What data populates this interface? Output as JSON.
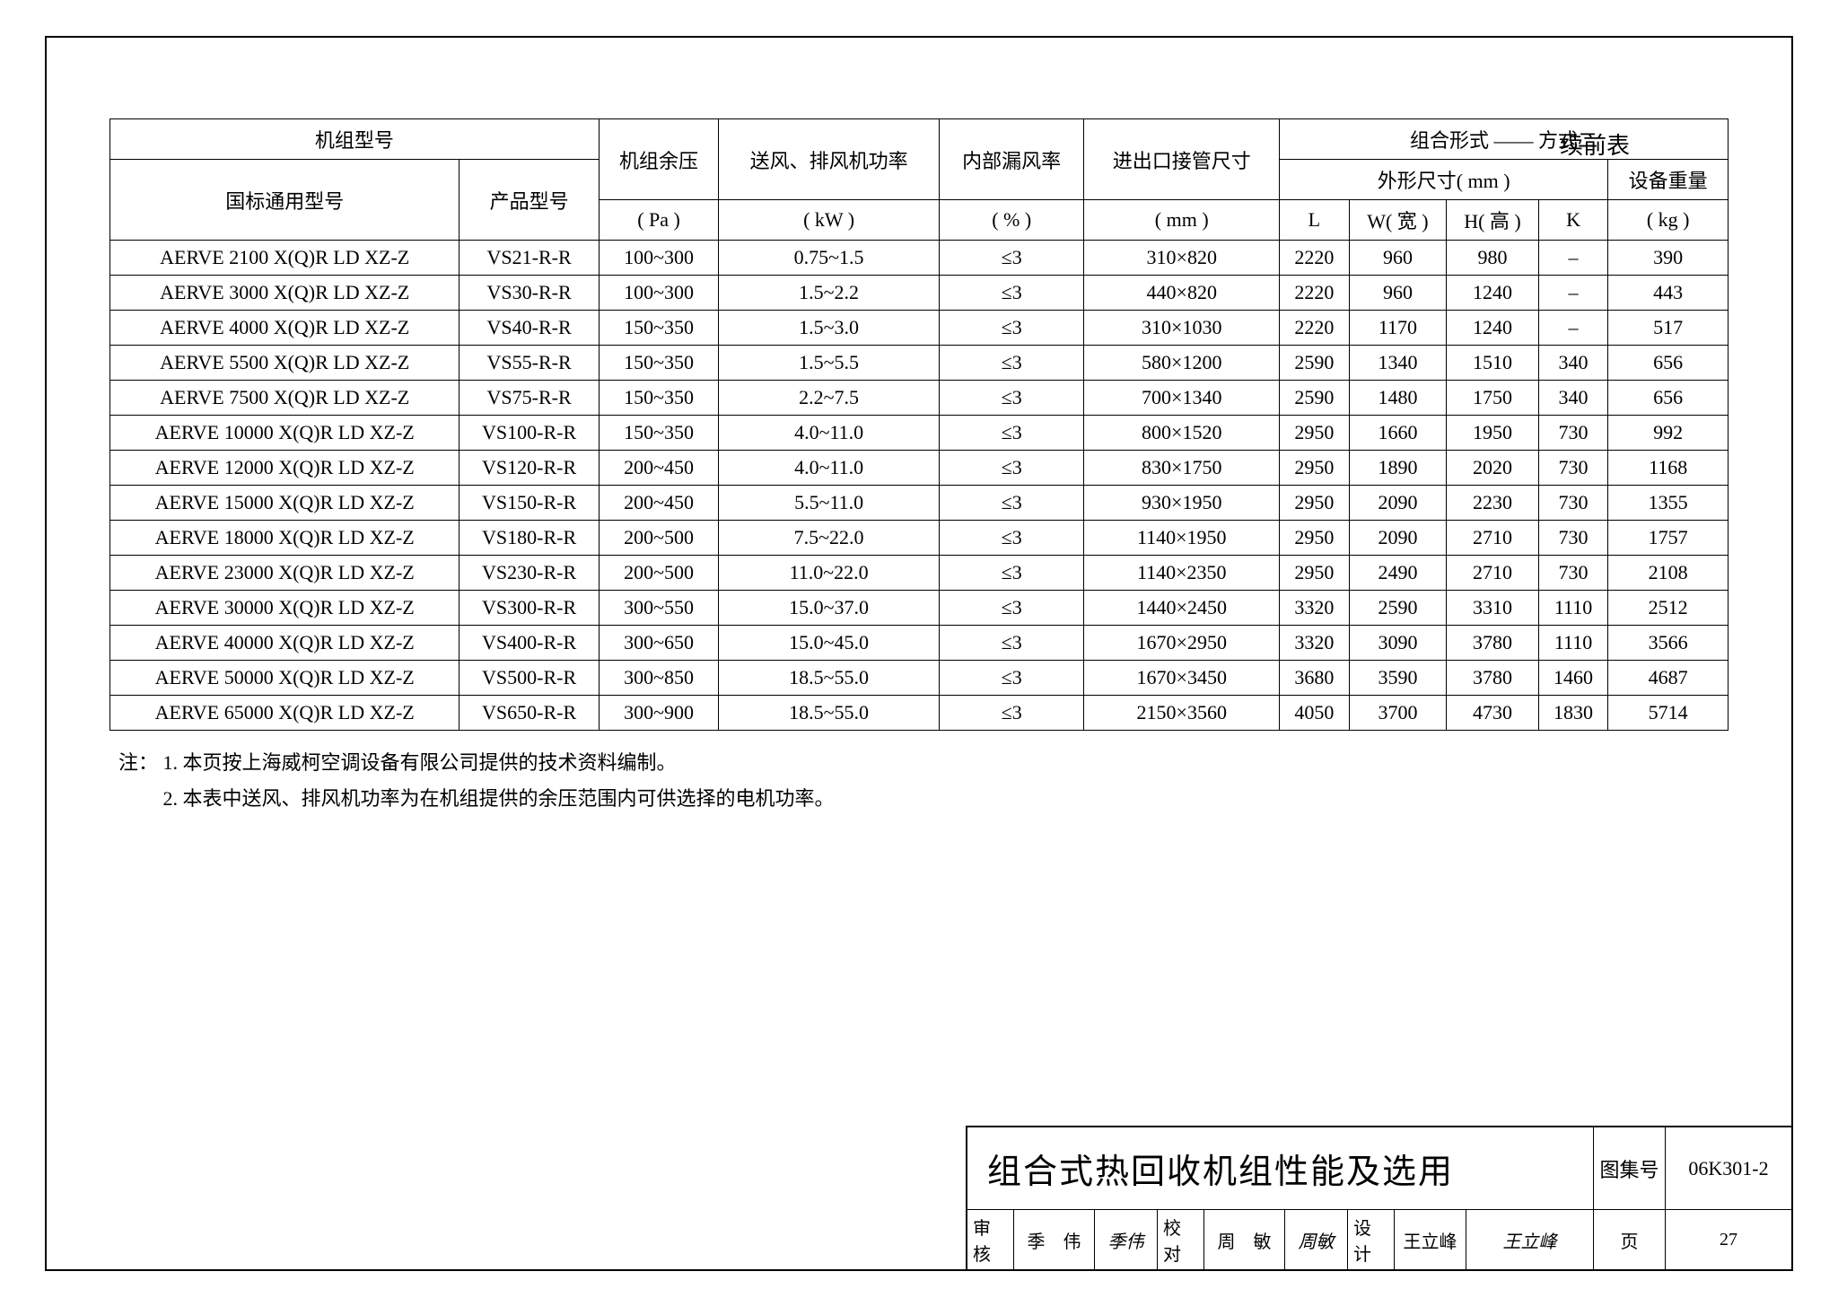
{
  "cont_label": "续前表",
  "table": {
    "header": {
      "model": "机组型号",
      "model_gb": "国标通用型号",
      "model_prod": "产品型号",
      "residual": "机组余压",
      "residual_unit": "( Pa )",
      "power": "送风、排风机功率",
      "power_unit": "( kW )",
      "leak": "内部漏风率",
      "leak_unit": "( % )",
      "pipe": "进出口接管尺寸",
      "pipe_unit": "( mm )",
      "combo": "组合形式 —— 方式二",
      "dims": "外形尺寸( mm )",
      "dim_L": "L",
      "dim_W": "W( 宽 )",
      "dim_H": "H( 高 )",
      "dim_K": "K",
      "weight": "设备重量",
      "weight_unit": "( kg )"
    },
    "rows": [
      {
        "gb": "AERVE 2100 X(Q)R LD XZ-Z",
        "prod": "VS21-R-R",
        "res": "100~300",
        "pow": "0.75~1.5",
        "leak": "≤3",
        "pipe": "310×820",
        "L": "2220",
        "W": "960",
        "H": "980",
        "K": "–",
        "wt": "390"
      },
      {
        "gb": "AERVE 3000 X(Q)R LD XZ-Z",
        "prod": "VS30-R-R",
        "res": "100~300",
        "pow": "1.5~2.2",
        "leak": "≤3",
        "pipe": "440×820",
        "L": "2220",
        "W": "960",
        "H": "1240",
        "K": "–",
        "wt": "443"
      },
      {
        "gb": "AERVE 4000 X(Q)R LD XZ-Z",
        "prod": "VS40-R-R",
        "res": "150~350",
        "pow": "1.5~3.0",
        "leak": "≤3",
        "pipe": "310×1030",
        "L": "2220",
        "W": "1170",
        "H": "1240",
        "K": "–",
        "wt": "517"
      },
      {
        "gb": "AERVE 5500 X(Q)R LD XZ-Z",
        "prod": "VS55-R-R",
        "res": "150~350",
        "pow": "1.5~5.5",
        "leak": "≤3",
        "pipe": "580×1200",
        "L": "2590",
        "W": "1340",
        "H": "1510",
        "K": "340",
        "wt": "656"
      },
      {
        "gb": "AERVE 7500 X(Q)R LD XZ-Z",
        "prod": "VS75-R-R",
        "res": "150~350",
        "pow": "2.2~7.5",
        "leak": "≤3",
        "pipe": "700×1340",
        "L": "2590",
        "W": "1480",
        "H": "1750",
        "K": "340",
        "wt": "656"
      },
      {
        "gb": "AERVE 10000 X(Q)R LD XZ-Z",
        "prod": "VS100-R-R",
        "res": "150~350",
        "pow": "4.0~11.0",
        "leak": "≤3",
        "pipe": "800×1520",
        "L": "2950",
        "W": "1660",
        "H": "1950",
        "K": "730",
        "wt": "992"
      },
      {
        "gb": "AERVE 12000 X(Q)R LD XZ-Z",
        "prod": "VS120-R-R",
        "res": "200~450",
        "pow": "4.0~11.0",
        "leak": "≤3",
        "pipe": "830×1750",
        "L": "2950",
        "W": "1890",
        "H": "2020",
        "K": "730",
        "wt": "1168"
      },
      {
        "gb": "AERVE 15000 X(Q)R LD XZ-Z",
        "prod": "VS150-R-R",
        "res": "200~450",
        "pow": "5.5~11.0",
        "leak": "≤3",
        "pipe": "930×1950",
        "L": "2950",
        "W": "2090",
        "H": "2230",
        "K": "730",
        "wt": "1355"
      },
      {
        "gb": "AERVE 18000 X(Q)R LD XZ-Z",
        "prod": "VS180-R-R",
        "res": "200~500",
        "pow": "7.5~22.0",
        "leak": "≤3",
        "pipe": "1140×1950",
        "L": "2950",
        "W": "2090",
        "H": "2710",
        "K": "730",
        "wt": "1757"
      },
      {
        "gb": "AERVE 23000 X(Q)R LD XZ-Z",
        "prod": "VS230-R-R",
        "res": "200~500",
        "pow": "11.0~22.0",
        "leak": "≤3",
        "pipe": "1140×2350",
        "L": "2950",
        "W": "2490",
        "H": "2710",
        "K": "730",
        "wt": "2108"
      },
      {
        "gb": "AERVE 30000 X(Q)R LD XZ-Z",
        "prod": "VS300-R-R",
        "res": "300~550",
        "pow": "15.0~37.0",
        "leak": "≤3",
        "pipe": "1440×2450",
        "L": "3320",
        "W": "2590",
        "H": "3310",
        "K": "1110",
        "wt": "2512"
      },
      {
        "gb": "AERVE 40000 X(Q)R LD XZ-Z",
        "prod": "VS400-R-R",
        "res": "300~650",
        "pow": "15.0~45.0",
        "leak": "≤3",
        "pipe": "1670×2950",
        "L": "3320",
        "W": "3090",
        "H": "3780",
        "K": "1110",
        "wt": "3566"
      },
      {
        "gb": "AERVE 50000 X(Q)R LD XZ-Z",
        "prod": "VS500-R-R",
        "res": "300~850",
        "pow": "18.5~55.0",
        "leak": "≤3",
        "pipe": "1670×3450",
        "L": "3680",
        "W": "3590",
        "H": "3780",
        "K": "1460",
        "wt": "4687"
      },
      {
        "gb": "AERVE 65000 X(Q)R LD XZ-Z",
        "prod": "VS650-R-R",
        "res": "300~900",
        "pow": "18.5~55.0",
        "leak": "≤3",
        "pipe": "2150×3560",
        "L": "4050",
        "W": "3700",
        "H": "4730",
        "K": "1830",
        "wt": "5714"
      }
    ]
  },
  "notes": {
    "lead": "注：",
    "items": [
      "1. 本页按上海威柯空调设备有限公司提供的技术资料编制。",
      "2. 本表中送风、排风机功率为在机组提供的余压范围内可供选择的电机功率。"
    ]
  },
  "titleblock": {
    "title": "组合式热回收机组性能及选用",
    "set_lbl": "图集号",
    "set_val": "06K301-2",
    "page_lbl": "页",
    "page_val": "27",
    "review_lbl": "审核",
    "review_name": "季　伟",
    "review_sig": "季伟",
    "check_lbl": "校对",
    "check_name": "周　敏",
    "check_sig": "周敏",
    "design_lbl": "设计",
    "design_name": "王立峰",
    "design_sig": "王立峰"
  }
}
